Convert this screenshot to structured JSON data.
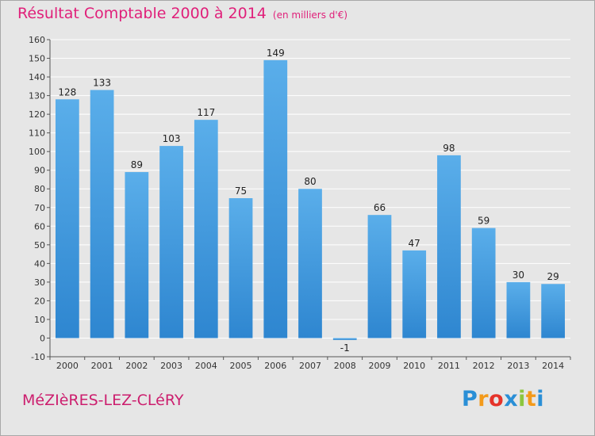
{
  "header": {
    "title": "Résultat Comptable 2000 à 2014",
    "unit": "(en milliers d'€)"
  },
  "footer": {
    "place": "MéZIèRES-LEZ-CLéRY",
    "logo_letters": [
      "P",
      "r",
      "o",
      "x",
      "i",
      "t",
      "i"
    ]
  },
  "colors": {
    "bar": "#2e86d0",
    "bar_light": "#5aaeea",
    "title": "#e0207a",
    "grid": "#ffffff",
    "plot_bg": "#e6e6e6"
  },
  "chart_data": {
    "type": "bar",
    "title": "Résultat Comptable 2000 à 2014",
    "subtitle": "(en milliers d'€)",
    "xlabel": "",
    "ylabel": "",
    "categories": [
      "2000",
      "2001",
      "2002",
      "2003",
      "2004",
      "2005",
      "2006",
      "2007",
      "2008",
      "2009",
      "2010",
      "2011",
      "2012",
      "2013",
      "2014"
    ],
    "values": [
      128,
      133,
      89,
      103,
      117,
      75,
      149,
      80,
      -1,
      66,
      47,
      98,
      59,
      30,
      29
    ],
    "data_labels": [
      "128",
      "133",
      "89",
      "103",
      "117",
      "75",
      "149",
      "80",
      "-1",
      "66",
      "47",
      "98",
      "59",
      "30",
      "29"
    ],
    "ylim": [
      -10,
      160
    ],
    "yticks": [
      -10,
      0,
      10,
      20,
      30,
      40,
      50,
      60,
      70,
      80,
      90,
      100,
      110,
      120,
      130,
      140,
      150,
      160
    ],
    "grid": true,
    "legend": "none"
  }
}
